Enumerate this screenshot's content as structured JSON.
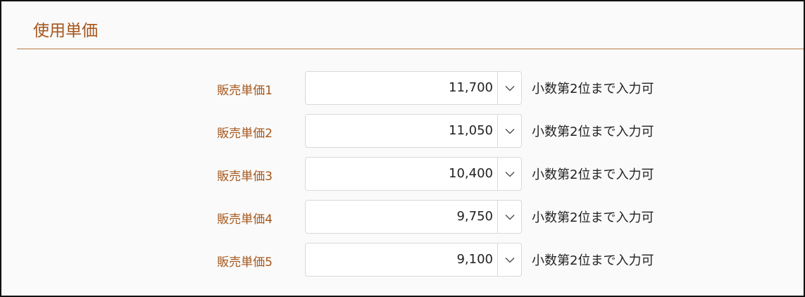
{
  "section": {
    "title": "使用単価"
  },
  "rows": [
    {
      "label": "販売単価1",
      "value": "11,700",
      "hint": "小数第2位まで入力可"
    },
    {
      "label": "販売単価2",
      "value": "11,050",
      "hint": "小数第2位まで入力可"
    },
    {
      "label": "販売単価3",
      "value": "10,400",
      "hint": "小数第2位まで入力可"
    },
    {
      "label": "販売単価4",
      "value": "9,750",
      "hint": "小数第2位まで入力可"
    },
    {
      "label": "販売単価5",
      "value": "9,100",
      "hint": "小数第2位まで入力可"
    }
  ],
  "colors": {
    "accent": "#a5561b",
    "rule": "#b87a45"
  },
  "icons": {
    "dropdown": "chevron-down-icon"
  }
}
